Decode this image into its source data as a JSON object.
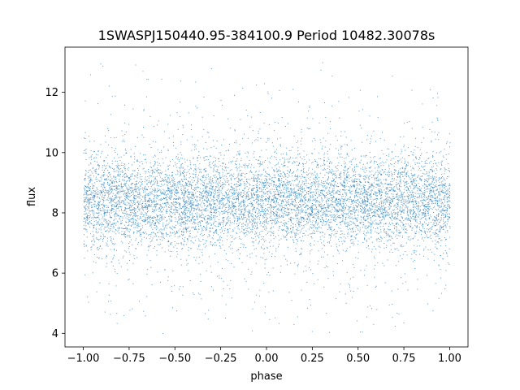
{
  "chart_data": {
    "type": "scatter",
    "title": "1SWASPJ150440.95-384100.9 Period 10482.30078s",
    "xlabel": "phase",
    "ylabel": "flux",
    "xlim": [
      -1.1,
      1.1
    ],
    "ylim": [
      3.55,
      13.5
    ],
    "xticks": [
      -1.0,
      -0.75,
      -0.5,
      -0.25,
      0.0,
      0.25,
      0.5,
      0.75,
      1.0
    ],
    "xtick_labels": [
      "−1.00",
      "−0.75",
      "−0.50",
      "−0.25",
      "0.00",
      "0.25",
      "0.50",
      "0.75",
      "1.00"
    ],
    "yticks": [
      4,
      6,
      8,
      10,
      12
    ],
    "ytick_labels": [
      "4",
      "6",
      "8",
      "10",
      "12"
    ],
    "grid": false,
    "marker_color": "#1f77b4",
    "series": [
      {
        "x_range": [
          -1.0,
          1.0
        ],
        "y_range": [
          4.0,
          13.0
        ],
        "mean_flux": 8.4,
        "point_density": "dense",
        "note": "point cloud; exact points not recoverable"
      }
    ]
  }
}
